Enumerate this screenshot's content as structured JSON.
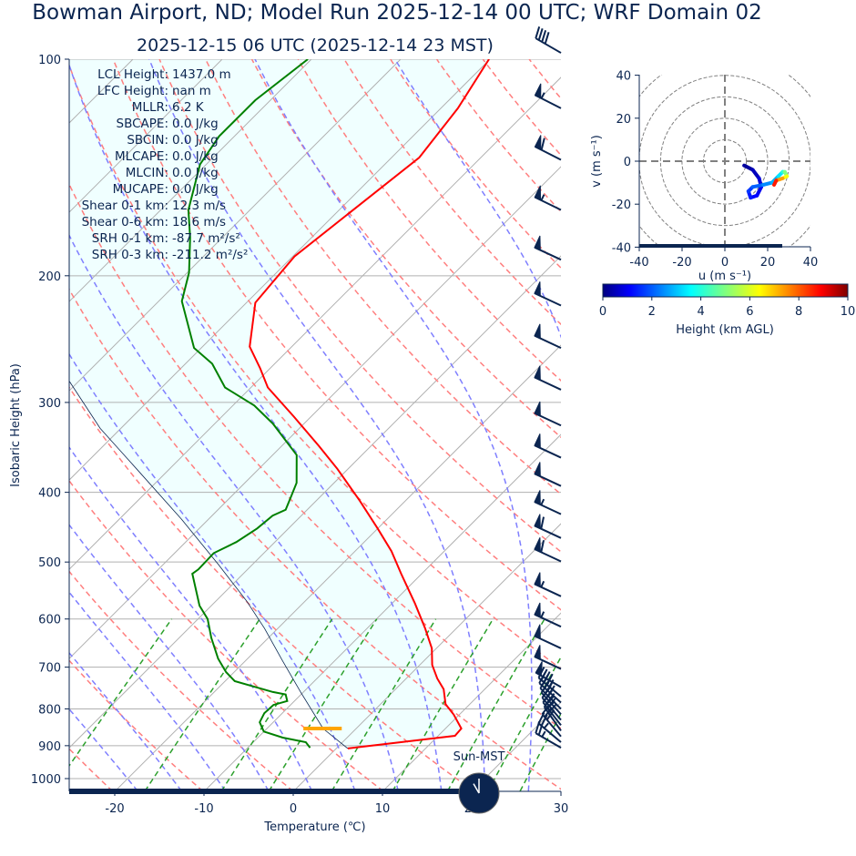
{
  "header": {
    "title": "Bowman Airport, ND; Model Run 2025-12-14 00 UTC; WRF Domain 02",
    "subtitle": "2025-12-15 06 UTC  (2025-12-14 23 MST)"
  },
  "colors": {
    "text": "#0b2550",
    "temperature": "#ff0000",
    "dewpoint": "#008000",
    "parcel": "#0b2550",
    "cin_fill": "#f0ffff",
    "isotherm": "#b0b0b0",
    "dry_adiabat": "#ff7f7f",
    "moist_adiabat": "#7f7fff",
    "mixing_ratio": "#2ca02c",
    "lcl_marker": "#ffa500",
    "progress": "#0b2550"
  },
  "stats": [
    {
      "label": "LCL Height:",
      "value": "1437.0 m"
    },
    {
      "label": "LFC Height:",
      "value": "nan m"
    },
    {
      "label": "MLLR:",
      "value": "6.2 K"
    },
    {
      "label": "SBCAPE:",
      "value": "0.0 J/kg"
    },
    {
      "label": "SBCIN:",
      "value": "0.0 J/kg"
    },
    {
      "label": "MLCAPE:",
      "value": "0.0 J/kg"
    },
    {
      "label": "MLCIN:",
      "value": "0.0 J/kg"
    },
    {
      "label": "MUCAPE:",
      "value": "0.0 J/kg"
    },
    {
      "label": "Shear 0-1 km:",
      "value": "12.3 m/s"
    },
    {
      "label": "Shear 0-6 km:",
      "value": "18.6 m/s"
    },
    {
      "label": "SRH 0-1 km:",
      "value": "-87.7 m²/s²"
    },
    {
      "label": "SRH 0-3 km:",
      "value": "-211.2 m²/s²"
    }
  ],
  "clock": {
    "label": "Sun-MST",
    "hour": 23,
    "minute": 0
  },
  "forecast_progress_fraction": 0.835,
  "chart_data": [
    {
      "type": "skewt",
      "xlabel": "Temperature (℃)",
      "ylabel": "Isobaric Height (hPa)",
      "xlim": [
        -25,
        30
      ],
      "ylim": [
        1041,
        100
      ],
      "y_scale": "log",
      "xticks": [
        -20,
        -10,
        0,
        10,
        20,
        30
      ],
      "yticks": [
        100,
        200,
        300,
        400,
        500,
        600,
        700,
        800,
        900,
        1000
      ],
      "grid": true,
      "temperature": [
        [
          908,
          1.3
        ],
        [
          872,
          11.9
        ],
        [
          852,
          11.8
        ],
        [
          815,
          9.4
        ],
        [
          788,
          7.3
        ],
        [
          751,
          5.4
        ],
        [
          726,
          3.5
        ],
        [
          695,
          1.4
        ],
        [
          659,
          -0.5
        ],
        [
          618,
          -3.5
        ],
        [
          571,
          -7.4
        ],
        [
          519,
          -12.3
        ],
        [
          483,
          -15.9
        ],
        [
          449,
          -20.0
        ],
        [
          411,
          -25.1
        ],
        [
          371,
          -31.2
        ],
        [
          345,
          -35.8
        ],
        [
          314,
          -41.9
        ],
        [
          286,
          -48.1
        ],
        [
          269,
          -51.1
        ],
        [
          251,
          -54.7
        ],
        [
          218,
          -59.0
        ],
        [
          188,
          -59.8
        ],
        [
          137,
          -56.9
        ],
        [
          117,
          -58.1
        ],
        [
          100,
          -60.1
        ]
      ],
      "dewpoint": [
        [
          906,
          -3.0
        ],
        [
          890,
          -4.1
        ],
        [
          877,
          -7.2
        ],
        [
          860,
          -10.0
        ],
        [
          835,
          -11.5
        ],
        [
          811,
          -12.0
        ],
        [
          790,
          -11.9
        ],
        [
          780,
          -10.8
        ],
        [
          764,
          -11.7
        ],
        [
          758,
          -13.4
        ],
        [
          732,
          -18.9
        ],
        [
          711,
          -20.9
        ],
        [
          681,
          -23.3
        ],
        [
          637,
          -26.4
        ],
        [
          600,
          -28.9
        ],
        [
          575,
          -31.3
        ],
        [
          519,
          -35.7
        ],
        [
          512,
          -35.5
        ],
        [
          486,
          -35.6
        ],
        [
          469,
          -34.3
        ],
        [
          449,
          -33.5
        ],
        [
          431,
          -33.2
        ],
        [
          423,
          -32.4
        ],
        [
          405,
          -33.3
        ],
        [
          388,
          -34.2
        ],
        [
          355,
          -37.3
        ],
        [
          321,
          -43.5
        ],
        [
          303,
          -47.6
        ],
        [
          286,
          -52.9
        ],
        [
          265,
          -57.0
        ],
        [
          252,
          -60.8
        ],
        [
          217,
          -67.4
        ],
        [
          198,
          -69.8
        ],
        [
          177,
          -73.6
        ],
        [
          162,
          -76.9
        ],
        [
          140,
          -80.7
        ],
        [
          128,
          -81.7
        ],
        [
          114,
          -81.7
        ],
        [
          100,
          -80.4
        ]
      ],
      "parcel": [
        [
          908,
          1.3
        ],
        [
          852,
          -3.7
        ],
        [
          758,
          -10.3
        ],
        [
          685,
          -15.9
        ],
        [
          618,
          -21.5
        ],
        [
          566,
          -26.6
        ],
        [
          504,
          -33.8
        ],
        [
          436,
          -43.0
        ],
        [
          371,
          -53.7
        ],
        [
          326,
          -62.3
        ],
        [
          281,
          -70.9
        ],
        [
          250,
          -78
        ],
        [
          200,
          -90
        ],
        [
          100,
          -120
        ]
      ],
      "lcl_marker": {
        "pressure": 852,
        "t_start": -5.9,
        "t_end": -1.6
      },
      "dry_adiabats_K": [
        230,
        240,
        250,
        260,
        270,
        280,
        290,
        300,
        310,
        320,
        330,
        340,
        350,
        360,
        370,
        380,
        390,
        400,
        410,
        420,
        430,
        440,
        450,
        460
      ],
      "moist_adiabats_C": [
        -20,
        -15,
        -10,
        -5,
        0,
        5,
        10,
        15,
        20,
        25,
        30,
        35
      ],
      "mixing_ratios_gkg": [
        0.4,
        1,
        2,
        3,
        5,
        8,
        12,
        16,
        20
      ],
      "wind_barbs_kt": [
        {
          "p": 98,
          "dir": 300,
          "spd": 40
        },
        {
          "p": 117,
          "dir": 297,
          "spd": 55
        },
        {
          "p": 138,
          "dir": 297,
          "spd": 60
        },
        {
          "p": 162,
          "dir": 296,
          "spd": 55
        },
        {
          "p": 190,
          "dir": 295,
          "spd": 50
        },
        {
          "p": 220,
          "dir": 295,
          "spd": 50
        },
        {
          "p": 252,
          "dir": 295,
          "spd": 50
        },
        {
          "p": 288,
          "dir": 295,
          "spd": 50
        },
        {
          "p": 323,
          "dir": 295,
          "spd": 50
        },
        {
          "p": 358,
          "dir": 295,
          "spd": 50
        },
        {
          "p": 392,
          "dir": 295,
          "spd": 50
        },
        {
          "p": 429,
          "dir": 295,
          "spd": 55
        },
        {
          "p": 463,
          "dir": 295,
          "spd": 60
        },
        {
          "p": 499,
          "dir": 295,
          "spd": 60
        },
        {
          "p": 558,
          "dir": 295,
          "spd": 55
        },
        {
          "p": 615,
          "dir": 295,
          "spd": 55
        },
        {
          "p": 659,
          "dir": 295,
          "spd": 50
        },
        {
          "p": 704,
          "dir": 295,
          "spd": 50
        },
        {
          "p": 746,
          "dir": 300,
          "spd": 50
        },
        {
          "p": 769,
          "dir": 310,
          "spd": 40
        },
        {
          "p": 784,
          "dir": 312,
          "spd": 40
        },
        {
          "p": 800,
          "dir": 315,
          "spd": 40
        },
        {
          "p": 814,
          "dir": 318,
          "spd": 35
        },
        {
          "p": 829,
          "dir": 320,
          "spd": 35
        },
        {
          "p": 843,
          "dir": 322,
          "spd": 30
        },
        {
          "p": 858,
          "dir": 325,
          "spd": 30
        },
        {
          "p": 874,
          "dir": 320,
          "spd": 30
        },
        {
          "p": 890,
          "dir": 310,
          "spd": 25
        },
        {
          "p": 906,
          "dir": 300,
          "spd": 25
        }
      ]
    },
    {
      "type": "hodograph",
      "xlabel": "u (m s$^{-1}$)",
      "xlabel_text": "u (m s⁻¹)",
      "ylabel_text": "v (m s⁻¹)",
      "xlim": [
        -40,
        40
      ],
      "ylim": [
        -40,
        40
      ],
      "xticks": [
        -40,
        -20,
        0,
        20,
        40
      ],
      "yticks": [
        -40,
        -20,
        0,
        20,
        40
      ],
      "rings": [
        10,
        20,
        30,
        40,
        50
      ],
      "points": [
        {
          "u": 9,
          "v": -2,
          "h": 0
        },
        {
          "u": 13,
          "v": -4,
          "h": 0.3
        },
        {
          "u": 16,
          "v": -8,
          "h": 0.6
        },
        {
          "u": 17,
          "v": -12,
          "h": 0.9
        },
        {
          "u": 15,
          "v": -16,
          "h": 1.1
        },
        {
          "u": 12,
          "v": -17,
          "h": 1.3
        },
        {
          "u": 11,
          "v": -14,
          "h": 1.5
        },
        {
          "u": 13,
          "v": -12,
          "h": 1.8
        },
        {
          "u": 18,
          "v": -11,
          "h": 2.2
        },
        {
          "u": 22,
          "v": -10,
          "h": 2.6
        },
        {
          "u": 25,
          "v": -7,
          "h": 3.0
        },
        {
          "u": 27,
          "v": -5,
          "h": 3.5
        },
        {
          "u": 28,
          "v": -5,
          "h": 4.2
        },
        {
          "u": 29,
          "v": -7,
          "h": 5.0
        },
        {
          "u": 27,
          "v": -8,
          "h": 6.2
        },
        {
          "u": 24,
          "v": -9,
          "h": 7.2
        },
        {
          "u": 23,
          "v": -11,
          "h": 8.5
        }
      ],
      "colorbar": {
        "label": "Height (km AGL)",
        "ticks": [
          0,
          2,
          4,
          6,
          8,
          10
        ],
        "colormap": "jet",
        "range": [
          0,
          10
        ]
      }
    }
  ]
}
